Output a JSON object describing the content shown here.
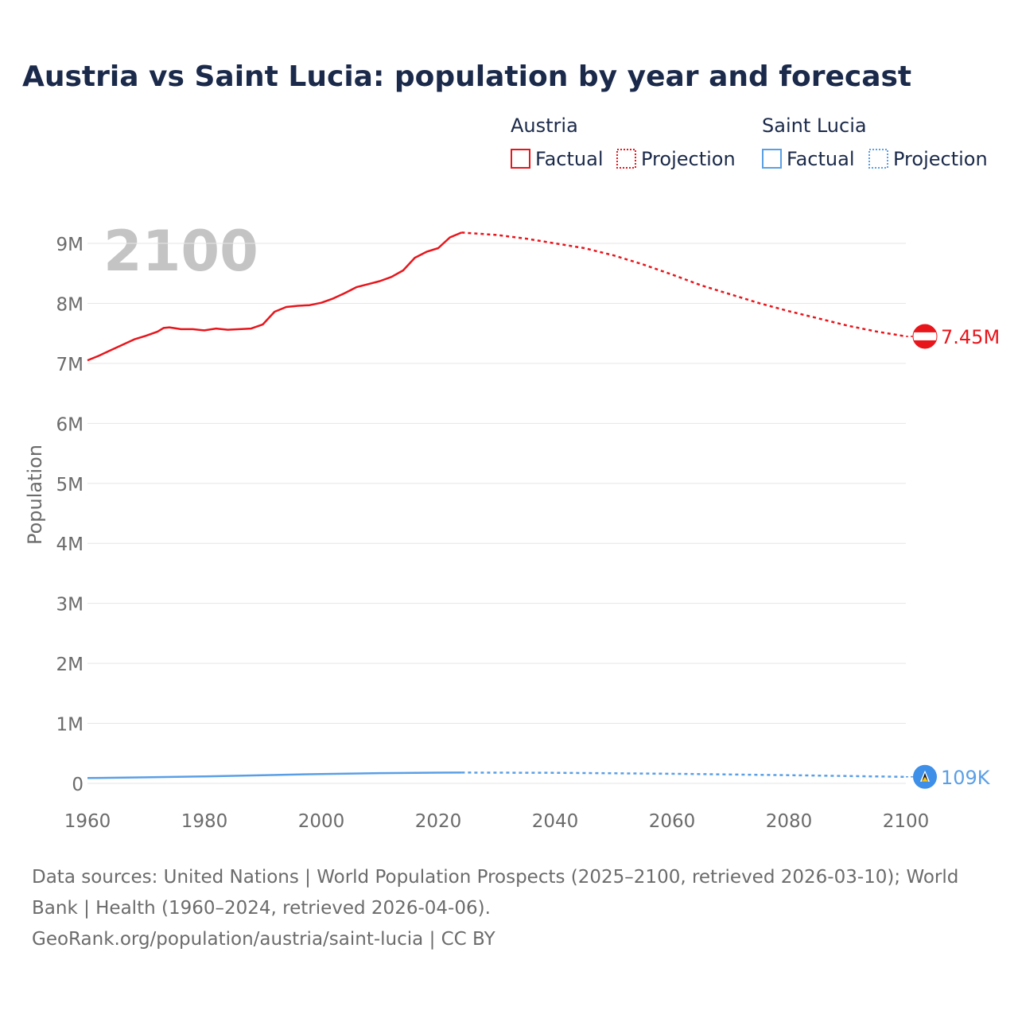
{
  "chart_data": {
    "type": "line",
    "title": "Austria vs Saint Lucia: population by year and forecast",
    "ylabel": "Population",
    "xlabel": "",
    "year_overlay": "2100",
    "xlim": [
      1960,
      2100
    ],
    "ylim": [
      0,
      9000000
    ],
    "x_ticks": [
      1960,
      1980,
      2000,
      2020,
      2040,
      2060,
      2080,
      2100
    ],
    "x_tick_labels": [
      "1960",
      "1980",
      "2000",
      "2020",
      "2040",
      "2060",
      "2080",
      "2100"
    ],
    "y_ticks": [
      0,
      1000000,
      2000000,
      3000000,
      4000000,
      5000000,
      6000000,
      7000000,
      8000000,
      9000000
    ],
    "y_tick_labels": [
      "0",
      "1M",
      "2M",
      "3M",
      "4M",
      "5M",
      "6M",
      "7M",
      "8M",
      "9M"
    ],
    "grid": true,
    "legend": {
      "placement": "top-right",
      "groups": [
        {
          "country": "Austria",
          "factual_label": "Factual",
          "projection_label": "Projection",
          "color": "#e8151b"
        },
        {
          "country": "Saint Lucia",
          "factual_label": "Factual",
          "projection_label": "Projection",
          "color": "#5a9fe6"
        }
      ]
    },
    "series": [
      {
        "name": "Austria",
        "color": "#e8151b",
        "end_label": "7.45M",
        "flag_icon": "austria-flag-icon",
        "factual": {
          "x": [
            1960,
            1962,
            1964,
            1966,
            1968,
            1970,
            1972,
            1973,
            1974,
            1976,
            1978,
            1980,
            1982,
            1984,
            1986,
            1988,
            1990,
            1992,
            1994,
            1996,
            1998,
            2000,
            2002,
            2004,
            2006,
            2008,
            2010,
            2012,
            2014,
            2016,
            2018,
            2020,
            2022,
            2024
          ],
          "y": [
            7050000,
            7130000,
            7220000,
            7310000,
            7400000,
            7460000,
            7530000,
            7590000,
            7600000,
            7570000,
            7570000,
            7550000,
            7580000,
            7560000,
            7570000,
            7580000,
            7650000,
            7860000,
            7940000,
            7960000,
            7970000,
            8010000,
            8080000,
            8170000,
            8270000,
            8320000,
            8370000,
            8440000,
            8550000,
            8760000,
            8860000,
            8920000,
            9100000,
            9180000
          ]
        },
        "projection": {
          "x": [
            2024,
            2030,
            2035,
            2040,
            2045,
            2050,
            2055,
            2060,
            2065,
            2070,
            2075,
            2080,
            2085,
            2090,
            2095,
            2100
          ],
          "y": [
            9180000,
            9140000,
            9080000,
            9000000,
            8920000,
            8800000,
            8650000,
            8480000,
            8300000,
            8150000,
            8000000,
            7870000,
            7750000,
            7630000,
            7530000,
            7450000
          ]
        }
      },
      {
        "name": "Saint Lucia",
        "color": "#5a9fe6",
        "end_label": "109K",
        "flag_icon": "saint-lucia-flag-icon",
        "factual": {
          "x": [
            1960,
            1970,
            1980,
            1990,
            2000,
            2010,
            2020,
            2024
          ],
          "y": [
            89000,
            101000,
            117000,
            137000,
            156000,
            171000,
            179000,
            180000
          ]
        },
        "projection": {
          "x": [
            2024,
            2040,
            2060,
            2080,
            2100
          ],
          "y": [
            180000,
            176000,
            160000,
            137000,
            109000
          ]
        }
      }
    ]
  },
  "footer": {
    "sources": "Data sources: United Nations | World Population Prospects (2025–2100, retrieved 2026-03-10); World Bank | Health (1960–2024, retrieved 2026-04-06).",
    "credit": "GeoRank.org/population/austria/saint-lucia | CC BY"
  }
}
